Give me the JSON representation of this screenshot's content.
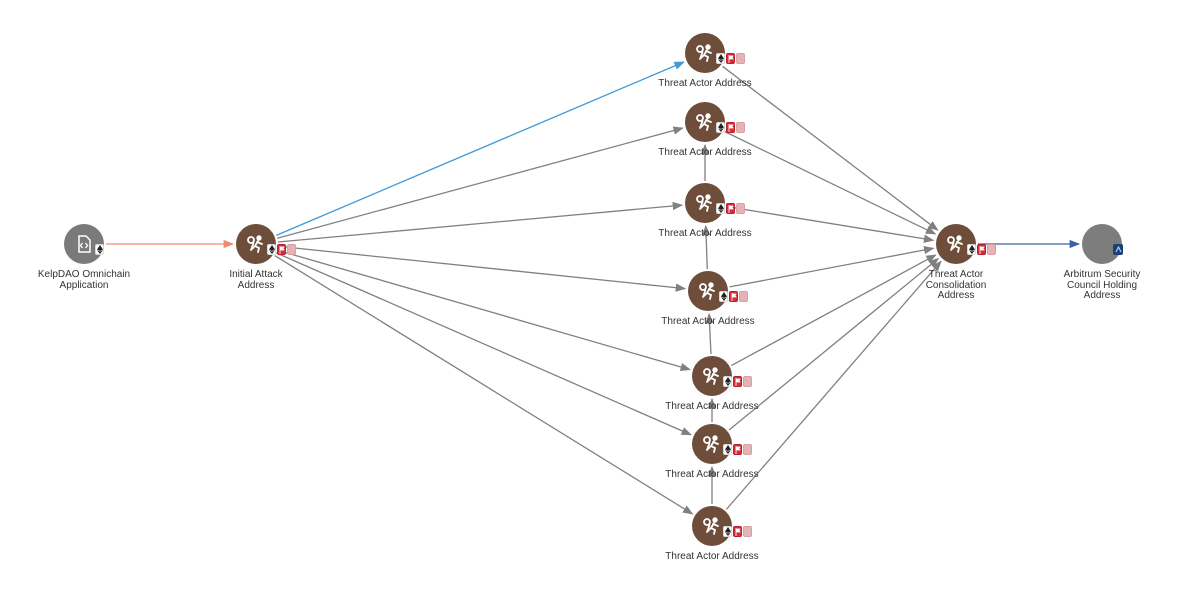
{
  "nodes": {
    "source": {
      "label": "KelpDAO Omnichain\nApplication",
      "icon": "contract-icon",
      "badges": [
        "ethereum-badge"
      ]
    },
    "initial": {
      "label": "Initial Attack\nAddress",
      "icon": "threat-actor-icon",
      "badges": [
        "ethereum-badge",
        "flag-badge",
        "pale-flag-badge"
      ]
    },
    "t1": {
      "label": "Threat Actor Address",
      "icon": "threat-actor-icon",
      "badges": [
        "ethereum-badge",
        "flag-badge",
        "pale-flag-badge"
      ]
    },
    "t2": {
      "label": "Threat Actor Address",
      "icon": "threat-actor-icon",
      "badges": [
        "ethereum-badge",
        "flag-badge",
        "pale-flag-badge"
      ]
    },
    "t3": {
      "label": "Threat Actor Address",
      "icon": "threat-actor-icon",
      "badges": [
        "ethereum-badge",
        "flag-badge",
        "pale-flag-badge"
      ]
    },
    "t4": {
      "label": "Threat Actor Address",
      "icon": "threat-actor-icon",
      "badges": [
        "ethereum-badge",
        "flag-badge",
        "pale-flag-badge"
      ]
    },
    "t5": {
      "label": "Threat Actor Address",
      "icon": "threat-actor-icon",
      "badges": [
        "ethereum-badge",
        "flag-badge",
        "pale-flag-badge"
      ]
    },
    "t6": {
      "label": "Threat Actor Address",
      "icon": "threat-actor-icon",
      "badges": [
        "ethereum-badge",
        "flag-badge",
        "pale-flag-badge"
      ]
    },
    "t7": {
      "label": "Threat Actor Address",
      "icon": "threat-actor-icon",
      "badges": [
        "ethereum-badge",
        "flag-badge",
        "pale-flag-badge"
      ]
    },
    "consolidation": {
      "label": "Threat Actor\nConsolidation\nAddress",
      "icon": "threat-actor-icon",
      "badges": [
        "ethereum-badge",
        "flag-badge",
        "pale-flag-badge"
      ]
    },
    "arbitrum": {
      "label": "Arbitrum Security\nCouncil Holding\nAddress",
      "icon": "",
      "badges": [
        "arbitrum-badge"
      ]
    }
  },
  "edges": [
    {
      "from": "source",
      "to": "initial",
      "color": "#f08a74"
    },
    {
      "from": "initial",
      "to": "t1",
      "color": "#3f9ad6"
    },
    {
      "from": "initial",
      "to": "t2",
      "color": "#808080"
    },
    {
      "from": "initial",
      "to": "t3",
      "color": "#808080"
    },
    {
      "from": "initial",
      "to": "t4",
      "color": "#808080"
    },
    {
      "from": "initial",
      "to": "t5",
      "color": "#808080"
    },
    {
      "from": "initial",
      "to": "t6",
      "color": "#808080"
    },
    {
      "from": "initial",
      "to": "t7",
      "color": "#808080"
    },
    {
      "from": "t3",
      "to": "t2",
      "color": "#808080"
    },
    {
      "from": "t4",
      "to": "t3",
      "color": "#808080"
    },
    {
      "from": "t5",
      "to": "t4",
      "color": "#808080"
    },
    {
      "from": "t6",
      "to": "t5",
      "color": "#808080"
    },
    {
      "from": "t7",
      "to": "t6",
      "color": "#808080"
    },
    {
      "from": "t1",
      "to": "consolidation",
      "color": "#808080"
    },
    {
      "from": "t2",
      "to": "consolidation",
      "color": "#808080"
    },
    {
      "from": "t3",
      "to": "consolidation",
      "color": "#808080"
    },
    {
      "from": "t4",
      "to": "consolidation",
      "color": "#808080"
    },
    {
      "from": "t5",
      "to": "consolidation",
      "color": "#808080"
    },
    {
      "from": "t6",
      "to": "consolidation",
      "color": "#808080"
    },
    {
      "from": "t7",
      "to": "consolidation",
      "color": "#808080"
    },
    {
      "from": "consolidation",
      "to": "arbitrum",
      "color": "#3d5fa8"
    }
  ]
}
